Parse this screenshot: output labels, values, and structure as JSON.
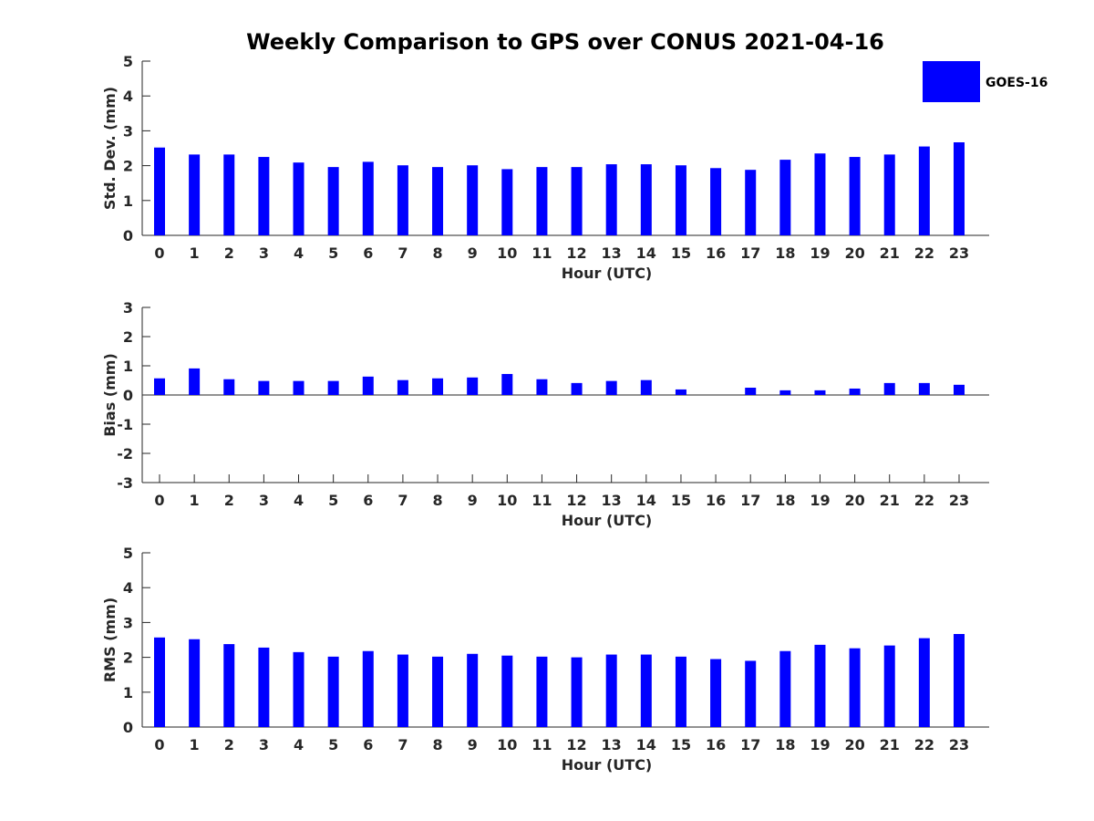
{
  "chart_data": {
    "title": "Weekly Comparison to GPS over CONUS 2021-04-16",
    "legend": {
      "label": "GOES-16",
      "color": "#0000ff",
      "position": "top-right"
    },
    "panels": [
      {
        "type": "bar",
        "name": "std-dev",
        "title": "",
        "xlabel": "Hour (UTC)",
        "ylabel": "Std. Dev. (mm)",
        "ylim": [
          0,
          5
        ],
        "yticks": [
          "0",
          "1",
          "2",
          "3",
          "4",
          "5"
        ],
        "categories": [
          "0",
          "1",
          "2",
          "3",
          "4",
          "5",
          "6",
          "7",
          "8",
          "9",
          "10",
          "11",
          "12",
          "13",
          "14",
          "15",
          "16",
          "17",
          "18",
          "19",
          "20",
          "21",
          "22",
          "23"
        ],
        "series": [
          {
            "name": "GOES-16",
            "color": "#0000ff",
            "values": [
              2.52,
              2.32,
              2.32,
              2.25,
              2.09,
              1.96,
              2.11,
              2.01,
              1.96,
              2.01,
              1.9,
              1.96,
              1.96,
              2.04,
              2.04,
              2.01,
              1.93,
              1.88,
              2.17,
              2.35,
              2.25,
              2.32,
              2.55,
              2.67
            ]
          }
        ]
      },
      {
        "type": "bar",
        "name": "bias",
        "title": "",
        "xlabel": "Hour (UTC)",
        "ylabel": "Bias (mm)",
        "ylim": [
          -3,
          3
        ],
        "yticks": [
          "-3",
          "-2",
          "-1",
          "0",
          "1",
          "2",
          "3"
        ],
        "categories": [
          "0",
          "1",
          "2",
          "3",
          "4",
          "5",
          "6",
          "7",
          "8",
          "9",
          "10",
          "11",
          "12",
          "13",
          "14",
          "15",
          "16",
          "17",
          "18",
          "19",
          "20",
          "21",
          "22",
          "23"
        ],
        "series": [
          {
            "name": "GOES-16",
            "color": "#0000ff",
            "values": [
              0.57,
              0.91,
              0.54,
              0.48,
              0.48,
              0.48,
              0.63,
              0.51,
              0.57,
              0.6,
              0.72,
              0.54,
              0.41,
              0.48,
              0.51,
              0.19,
              0.0,
              0.25,
              0.16,
              0.16,
              0.22,
              0.41,
              0.41,
              0.35
            ]
          }
        ]
      },
      {
        "type": "bar",
        "name": "rms",
        "title": "",
        "xlabel": "Hour (UTC)",
        "ylabel": "RMS (mm)",
        "ylim": [
          0,
          5
        ],
        "yticks": [
          "0",
          "1",
          "2",
          "3",
          "4",
          "5"
        ],
        "categories": [
          "0",
          "1",
          "2",
          "3",
          "4",
          "5",
          "6",
          "7",
          "8",
          "9",
          "10",
          "11",
          "12",
          "13",
          "14",
          "15",
          "16",
          "17",
          "18",
          "19",
          "20",
          "21",
          "22",
          "23"
        ],
        "series": [
          {
            "name": "GOES-16",
            "color": "#0000ff",
            "values": [
              2.57,
              2.52,
              2.38,
              2.28,
              2.15,
              2.02,
              2.18,
              2.08,
              2.02,
              2.1,
              2.05,
              2.02,
              2.0,
              2.08,
              2.08,
              2.02,
              1.95,
              1.9,
              2.18,
              2.36,
              2.26,
              2.34,
              2.55,
              2.67
            ]
          }
        ]
      }
    ]
  }
}
